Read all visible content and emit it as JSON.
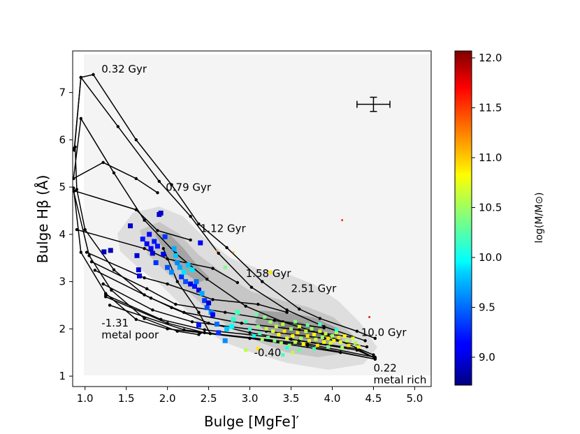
{
  "chart_data": {
    "type": "scatter",
    "title": "",
    "xlabel": "Bulge [MgFe]′",
    "ylabel": "Bulge Hβ (Å)",
    "xlim": [
      0.85,
      5.2
    ],
    "ylim": [
      0.78,
      7.88
    ],
    "xticks": [
      "1.0",
      "1.5",
      "2.0",
      "2.5",
      "3.0",
      "3.5",
      "4.0",
      "4.5",
      "5.0"
    ],
    "yticks": [
      "1",
      "2",
      "3",
      "4",
      "5",
      "6",
      "7"
    ],
    "colorbar": {
      "label": "log(M/M⊙)",
      "range": [
        8.72,
        12.07
      ],
      "ticks": [
        "9.0",
        "9.5",
        "10.0",
        "10.5",
        "11.0",
        "11.5",
        "12.0"
      ],
      "colormap": "jet"
    },
    "model_grid": {
      "age_labels": [
        "0.32 Gyr",
        "0.79 Gyr",
        "1.12 Gyr",
        "1.58 Gyr",
        "2.51 Gyr",
        "10.0 Gyr"
      ],
      "metallicity_labels": [
        {
          "value": "-1.31",
          "note": "metal poor"
        },
        {
          "value": "-0.40",
          "note": ""
        },
        {
          "value": "0.22",
          "note": "metal rich"
        }
      ],
      "age_lines": [
        [
          [
            0.86,
            5.18
          ],
          [
            1.22,
            5.52
          ],
          [
            1.62,
            5.18
          ],
          [
            1.88,
            4.88
          ]
        ],
        [
          [
            0.87,
            4.92
          ],
          [
            1.62,
            4.52
          ],
          [
            1.88,
            4.08
          ],
          [
            2.28,
            3.88
          ]
        ],
        [
          [
            0.9,
            4.1
          ],
          [
            1.72,
            3.7
          ],
          [
            2.0,
            3.48
          ],
          [
            2.55,
            3.28
          ],
          [
            2.85,
            2.98
          ]
        ],
        [
          [
            1.02,
            3.62
          ],
          [
            1.72,
            3.08
          ],
          [
            2.0,
            2.95
          ],
          [
            2.55,
            2.62
          ],
          [
            3.1,
            2.52
          ],
          [
            3.45,
            2.35
          ]
        ],
        [
          [
            1.08,
            3.42
          ],
          [
            1.75,
            2.85
          ],
          [
            2.1,
            2.52
          ],
          [
            2.7,
            2.35
          ],
          [
            3.3,
            2.18
          ],
          [
            3.9,
            2.02
          ]
        ],
        [
          [
            1.12,
            3.24
          ],
          [
            1.8,
            2.65
          ],
          [
            2.2,
            2.35
          ],
          [
            2.9,
            2.12
          ],
          [
            3.6,
            1.98
          ],
          [
            4.25,
            1.82
          ]
        ],
        [
          [
            1.22,
            2.95
          ],
          [
            1.82,
            2.4
          ],
          [
            2.3,
            2.15
          ],
          [
            3.2,
            1.95
          ],
          [
            3.9,
            1.8
          ],
          [
            4.42,
            1.62
          ]
        ],
        [
          [
            1.25,
            2.72
          ],
          [
            1.92,
            2.2
          ],
          [
            2.45,
            1.98
          ],
          [
            3.5,
            1.78
          ],
          [
            4.3,
            1.55
          ],
          [
            4.52,
            1.38
          ]
        ],
        [
          [
            1.25,
            2.68
          ],
          [
            2.0,
            2.12
          ],
          [
            2.45,
            1.92
          ],
          [
            3.7,
            1.68
          ],
          [
            4.52,
            1.4
          ]
        ],
        [
          [
            1.3,
            2.5
          ],
          [
            2.2,
            1.98
          ],
          [
            3.0,
            1.8
          ],
          [
            4.1,
            1.5
          ],
          [
            4.52,
            1.36
          ]
        ]
      ],
      "metallicity_lines": [
        [
          [
            0.87,
            5.78
          ],
          [
            0.95,
            7.32
          ],
          [
            1.1,
            7.38
          ],
          [
            1.62,
            6.0
          ],
          [
            2.05,
            5.05
          ],
          [
            2.38,
            4.22
          ],
          [
            2.72,
            3.72
          ],
          [
            3.15,
            3.0
          ],
          [
            3.6,
            2.42
          ],
          [
            3.85,
            2.22
          ],
          [
            4.3,
            1.95
          ],
          [
            4.52,
            1.8
          ]
        ],
        [
          [
            0.87,
            5.82
          ],
          [
            0.95,
            7.32
          ],
          [
            1.4,
            6.28
          ],
          [
            1.9,
            5.12
          ],
          [
            2.28,
            4.38
          ],
          [
            2.62,
            3.6
          ],
          [
            3.02,
            2.88
          ],
          [
            3.45,
            2.4
          ],
          [
            3.9,
            2.05
          ],
          [
            4.4,
            1.75
          ]
        ],
        [
          [
            0.86,
            5.18
          ],
          [
            0.95,
            6.45
          ],
          [
            1.35,
            5.3
          ],
          [
            1.72,
            4.3
          ],
          [
            2.1,
            3.6
          ],
          [
            2.48,
            3.05
          ],
          [
            2.95,
            2.48
          ],
          [
            3.4,
            2.15
          ],
          [
            3.95,
            1.85
          ],
          [
            4.5,
            1.45
          ]
        ],
        [
          [
            0.88,
            5.85
          ],
          [
            0.9,
            4.95
          ],
          [
            1.0,
            4.1
          ],
          [
            1.35,
            3.25
          ],
          [
            1.72,
            2.72
          ],
          [
            2.05,
            2.45
          ],
          [
            2.5,
            2.12
          ],
          [
            3.0,
            1.92
          ],
          [
            3.6,
            1.75
          ],
          [
            4.3,
            1.58
          ],
          [
            4.52,
            1.38
          ]
        ],
        [
          [
            0.86,
            4.98
          ],
          [
            0.95,
            3.62
          ],
          [
            1.25,
            2.75
          ],
          [
            1.62,
            2.2
          ],
          [
            2.0,
            2.0
          ],
          [
            2.4,
            1.92
          ],
          [
            3.0,
            1.8
          ],
          [
            3.7,
            1.65
          ],
          [
            4.52,
            1.36
          ]
        ],
        [
          [
            0.86,
            4.92
          ],
          [
            1.05,
            3.55
          ],
          [
            1.32,
            2.82
          ],
          [
            1.72,
            2.22
          ],
          [
            2.12,
            1.95
          ],
          [
            2.38,
            1.88
          ]
        ],
        [
          [
            1.95,
            3.7
          ],
          [
            2.12,
            3.0
          ],
          [
            2.38,
            2.35
          ],
          [
            2.52,
            1.9
          ]
        ]
      ],
      "age_label_points": [
        [
          1.2,
          7.42
        ],
        [
          1.98,
          4.92
        ],
        [
          2.4,
          4.05
        ],
        [
          2.95,
          3.1
        ],
        [
          3.5,
          2.78
        ],
        [
          4.35,
          1.85
        ]
      ],
      "metallicity_label_points": [
        [
          1.2,
          2.05
        ],
        [
          3.05,
          1.42
        ],
        [
          4.5,
          1.1
        ]
      ]
    },
    "error_bar": {
      "x": 4.5,
      "y": 6.75,
      "xerr": 0.2,
      "yerr": 0.15
    },
    "series": [
      {
        "name": "bulges (large markers)",
        "points": [
          [
            1.23,
            3.63,
            8.9
          ],
          [
            1.31,
            3.66,
            8.9
          ],
          [
            1.55,
            4.18,
            8.95
          ],
          [
            1.63,
            3.55,
            9.0
          ],
          [
            1.65,
            3.25,
            9.0
          ],
          [
            1.66,
            3.12,
            9.0
          ],
          [
            1.7,
            3.9,
            9.2
          ],
          [
            1.75,
            3.8,
            9.1
          ],
          [
            1.78,
            4.0,
            9.15
          ],
          [
            1.8,
            3.7,
            9.1
          ],
          [
            1.82,
            3.6,
            9.0
          ],
          [
            1.84,
            3.85,
            9.2
          ],
          [
            1.86,
            3.4,
            9.3
          ],
          [
            1.88,
            3.75,
            9.2
          ],
          [
            1.9,
            4.42,
            9.0
          ],
          [
            1.92,
            4.45,
            8.95
          ],
          [
            1.95,
            3.58,
            9.1
          ],
          [
            1.97,
            3.95,
            9.3
          ],
          [
            2.0,
            3.3,
            9.4
          ],
          [
            2.05,
            3.2,
            9.6
          ],
          [
            2.08,
            3.7,
            9.7
          ],
          [
            2.1,
            3.55,
            9.8
          ],
          [
            2.12,
            3.4,
            9.6
          ],
          [
            2.15,
            3.3,
            9.7
          ],
          [
            2.17,
            3.1,
            9.3
          ],
          [
            2.2,
            3.2,
            9.9
          ],
          [
            2.22,
            3.0,
            9.4
          ],
          [
            2.25,
            3.35,
            9.8
          ],
          [
            2.28,
            2.95,
            9.1
          ],
          [
            2.3,
            3.25,
            9.9
          ],
          [
            2.33,
            2.9,
            9.2
          ],
          [
            2.35,
            3.0,
            9.5
          ],
          [
            2.38,
            2.82,
            9.0
          ],
          [
            2.4,
            3.82,
            9.1
          ],
          [
            2.42,
            2.75,
            9.7
          ],
          [
            2.45,
            2.6,
            9.3
          ],
          [
            2.48,
            2.45,
            9.4
          ],
          [
            2.5,
            2.55,
            9.0
          ],
          [
            2.53,
            2.35,
            9.6
          ],
          [
            2.55,
            2.3,
            9.1
          ],
          [
            2.38,
            2.08,
            9.2
          ],
          [
            2.6,
            2.1,
            9.5
          ],
          [
            2.62,
            1.92,
            9.3
          ],
          [
            2.7,
            1.75,
            9.6
          ],
          [
            2.72,
            2.0,
            9.8
          ],
          [
            2.78,
            2.05,
            10.0
          ],
          [
            2.8,
            2.2,
            10.1
          ],
          [
            2.85,
            2.35,
            10.2
          ]
        ]
      },
      {
        "name": "bulges (small markers)",
        "points": [
          [
            2.95,
            2.15,
            10.2
          ],
          [
            3.0,
            2.0,
            10.1
          ],
          [
            3.05,
            1.85,
            10.0
          ],
          [
            3.08,
            2.3,
            10.3
          ],
          [
            3.1,
            2.05,
            10.4
          ],
          [
            3.12,
            1.9,
            10.2
          ],
          [
            3.15,
            1.78,
            10.5
          ],
          [
            3.18,
            2.25,
            10.4
          ],
          [
            3.2,
            2.0,
            10.6
          ],
          [
            3.22,
            1.82,
            10.3
          ],
          [
            3.25,
            2.15,
            10.5
          ],
          [
            3.28,
            1.95,
            10.7
          ],
          [
            3.3,
            1.75,
            10.4
          ],
          [
            3.32,
            2.05,
            10.6
          ],
          [
            3.35,
            1.88,
            10.8
          ],
          [
            3.38,
            1.7,
            10.5
          ],
          [
            3.4,
            2.1,
            10.6
          ],
          [
            3.42,
            1.95,
            10.9
          ],
          [
            3.45,
            1.8,
            10.7
          ],
          [
            3.48,
            1.65,
            10.4
          ],
          [
            3.5,
            2.0,
            10.5
          ],
          [
            3.52,
            1.85,
            10.8
          ],
          [
            3.55,
            1.72,
            10.6
          ],
          [
            3.58,
            1.92,
            10.9
          ],
          [
            3.6,
            2.05,
            10.7
          ],
          [
            3.62,
            1.8,
            10.5
          ],
          [
            3.65,
            1.68,
            10.8
          ],
          [
            3.68,
            1.95,
            10.6
          ],
          [
            3.7,
            1.85,
            10.9
          ],
          [
            3.72,
            1.75,
            10.7
          ],
          [
            3.75,
            2.0,
            10.5
          ],
          [
            3.78,
            1.88,
            10.8
          ],
          [
            3.8,
            1.78,
            10.6
          ],
          [
            3.82,
            1.65,
            10.9
          ],
          [
            3.85,
            1.95,
            10.7
          ],
          [
            3.88,
            1.82,
            10.5
          ],
          [
            3.9,
            1.72,
            10.8
          ],
          [
            3.92,
            1.9,
            10.6
          ],
          [
            3.95,
            1.8,
            10.9
          ],
          [
            3.98,
            1.7,
            10.7
          ],
          [
            4.0,
            1.85,
            10.5
          ],
          [
            4.02,
            1.75,
            10.8
          ],
          [
            4.05,
            1.92,
            10.6
          ],
          [
            4.08,
            1.82,
            10.9
          ],
          [
            4.1,
            1.72,
            10.7
          ],
          [
            4.12,
            1.6,
            10.5
          ],
          [
            4.15,
            1.85,
            10.8
          ],
          [
            4.18,
            1.75,
            10.6
          ],
          [
            4.2,
            1.65,
            10.9
          ],
          [
            4.25,
            1.8,
            10.7
          ],
          [
            4.28,
            1.7,
            10.5
          ],
          [
            4.32,
            1.62,
            10.8
          ],
          [
            3.55,
            2.15,
            10.4
          ],
          [
            3.7,
            2.08,
            10.3
          ],
          [
            3.85,
            2.1,
            10.2
          ],
          [
            3.45,
            1.6,
            10.1
          ],
          [
            3.6,
            1.55,
            10.3
          ],
          [
            3.78,
            1.58,
            10.2
          ],
          [
            2.95,
            1.55,
            10.6
          ],
          [
            3.1,
            1.58,
            10.9
          ],
          [
            4.12,
            4.3,
            11.6
          ],
          [
            4.45,
            2.25,
            11.8
          ],
          [
            2.8,
            3.62,
            11.1
          ],
          [
            2.6,
            3.65,
            11.2
          ],
          [
            2.7,
            3.3,
            10.4
          ],
          [
            3.25,
            3.2,
            10.9
          ],
          [
            3.52,
            1.5,
            10.6
          ],
          [
            3.95,
            1.62,
            10.4
          ],
          [
            4.05,
            1.98,
            10.1
          ],
          [
            3.4,
            1.45,
            10.2
          ]
        ]
      }
    ]
  }
}
